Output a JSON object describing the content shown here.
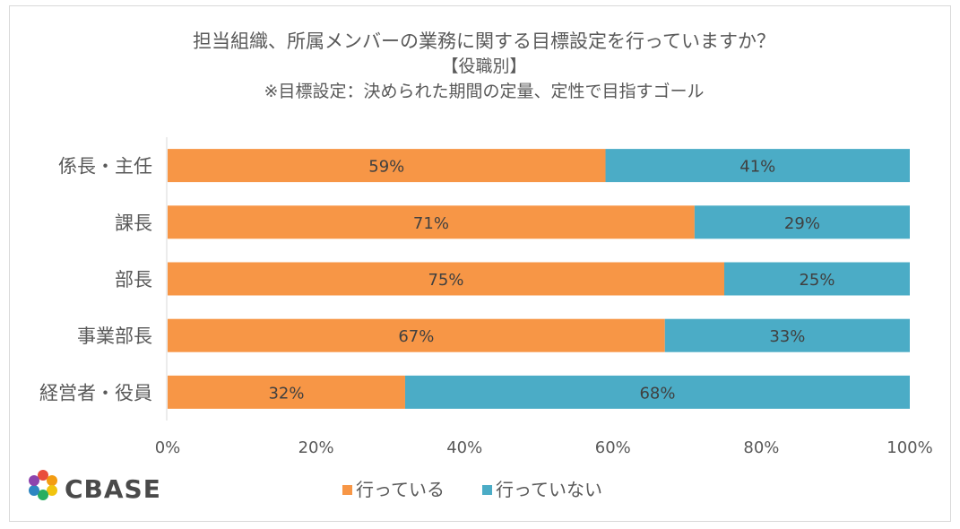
{
  "chart_data": {
    "type": "bar",
    "orientation": "horizontal",
    "stacked": true,
    "title": "担当組織、所属メンバーの業務に関する目標設定を行っていますか？",
    "subtitle": "【役職別】",
    "note": "※目標設定：決められた期間の定量、定性で目指すゴール",
    "categories": [
      "係長・主任",
      "課長",
      "部長",
      "事業部長",
      "経営者・役員"
    ],
    "series": [
      {
        "name": "行っている",
        "color": "#f79646",
        "values": [
          59,
          71,
          75,
          67,
          32
        ],
        "labels": [
          "59%",
          "71%",
          "75%",
          "67%",
          "32%"
        ]
      },
      {
        "name": "行っていない",
        "color": "#4bacc6",
        "values": [
          41,
          29,
          25,
          33,
          68
        ],
        "labels": [
          "41%",
          "29%",
          "25%",
          "33%",
          "68%"
        ]
      }
    ],
    "xlim": [
      0,
      100
    ],
    "xticks": [
      0,
      20,
      40,
      60,
      80,
      100
    ],
    "xtick_labels": [
      "0%",
      "20%",
      "40%",
      "60%",
      "80%",
      "100%"
    ],
    "grid": false,
    "legend_position": "bottom"
  },
  "brand": {
    "logo_text": "CBASE",
    "logo_icon": "cbase-flower-icon"
  }
}
